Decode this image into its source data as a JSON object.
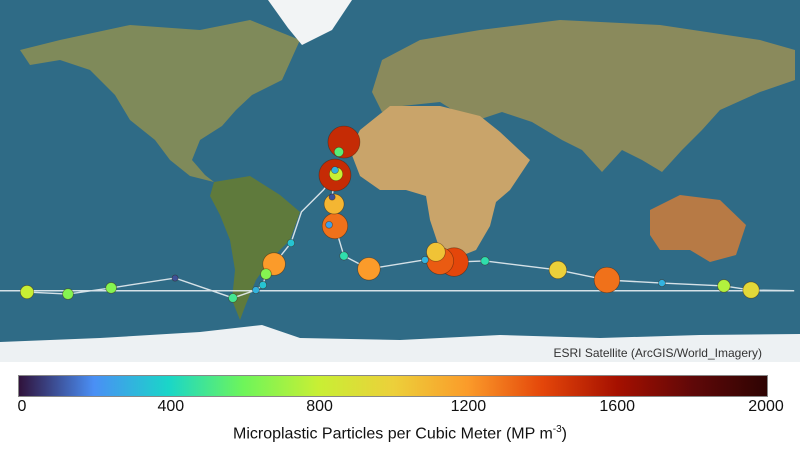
{
  "map": {
    "basemap": "ESRI Satellite (ArcGIS/World_Imagery)",
    "projection": "equirectangular",
    "ocean_color": "#2f6b86",
    "track_color": "#e8eef2"
  },
  "attribution": "ESRI Satellite (ArcGIS/World_Imagery)",
  "colorbar": {
    "min": 0,
    "max": 2000,
    "ticks": [
      "0",
      "400",
      "800",
      "1200",
      "1600",
      "2000"
    ],
    "tick_values": [
      0,
      400,
      800,
      1200,
      1600,
      2000
    ],
    "title": "Microplastic Particles per Cubic Meter (MP  m",
    "title_exponent": "-3",
    "title_close": ")",
    "colors": [
      "#30123b",
      "#4a8ff5",
      "#1ad6c8",
      "#6ef55a",
      "#c8ef34",
      "#ecd03a",
      "#fb9b2a",
      "#e4460a",
      "#a51000",
      "#600808",
      "#2e0403"
    ]
  },
  "chart_data": {
    "type": "scatter",
    "encoding": "color and size = microplastic concentration",
    "points": [
      {
        "lon": -25.6,
        "lat": 21.9,
        "value": 1500
      },
      {
        "lon": -27.9,
        "lat": 17.4,
        "value": 550
      },
      {
        "lon": -29.7,
        "lat": 6.8,
        "value": 1500
      },
      {
        "lon": -29.2,
        "lat": 7.3,
        "value": 800
      },
      {
        "lon": -29.7,
        "lat": 9.1,
        "value": 300
      },
      {
        "lon": -31.0,
        "lat": -3.2,
        "value": 100
      },
      {
        "lon": -30.1,
        "lat": -6.4,
        "value": 1100
      },
      {
        "lon": -29.7,
        "lat": -16.4,
        "value": 1300
      },
      {
        "lon": -32.4,
        "lat": -15.9,
        "value": 250
      },
      {
        "lon": -25.6,
        "lat": -30.1,
        "value": 450
      },
      {
        "lon": -14.2,
        "lat": -36.0,
        "value": 1200
      },
      {
        "lon": 11.4,
        "lat": -31.9,
        "value": 300
      },
      {
        "lon": 16.4,
        "lat": -28.3,
        "value": 1050
      },
      {
        "lon": 18.3,
        "lat": -32.4,
        "value": 1350
      },
      {
        "lon": 24.7,
        "lat": -32.9,
        "value": 1400
      },
      {
        "lon": 38.8,
        "lat": -32.4,
        "value": 450
      },
      {
        "lon": 72.1,
        "lat": -36.5,
        "value": 1000
      },
      {
        "lon": 94.5,
        "lat": -41.1,
        "value": 1300
      },
      {
        "lon": 119.6,
        "lat": -42.5,
        "value": 300
      },
      {
        "lon": 147.9,
        "lat": -43.8,
        "value": 750
      },
      {
        "lon": 160.3,
        "lat": -45.7,
        "value": 950
      },
      {
        "lon": -57.5,
        "lat": -33.8,
        "value": 1200
      },
      {
        "lon": -61.2,
        "lat": -38.4,
        "value": 650
      },
      {
        "lon": -62.6,
        "lat": -43.4,
        "value": 350
      },
      {
        "lon": -65.8,
        "lat": -45.7,
        "value": 300
      },
      {
        "lon": -49.8,
        "lat": -24.2,
        "value": 350
      },
      {
        "lon": -76.3,
        "lat": -49.3,
        "value": 500
      },
      {
        "lon": -102.7,
        "lat": -40.2,
        "value": 100
      },
      {
        "lon": -131.9,
        "lat": -44.7,
        "value": 650
      },
      {
        "lon": -151.6,
        "lat": -47.5,
        "value": 650
      },
      {
        "lon": -170.3,
        "lat": -46.6,
        "value": 800
      }
    ]
  }
}
